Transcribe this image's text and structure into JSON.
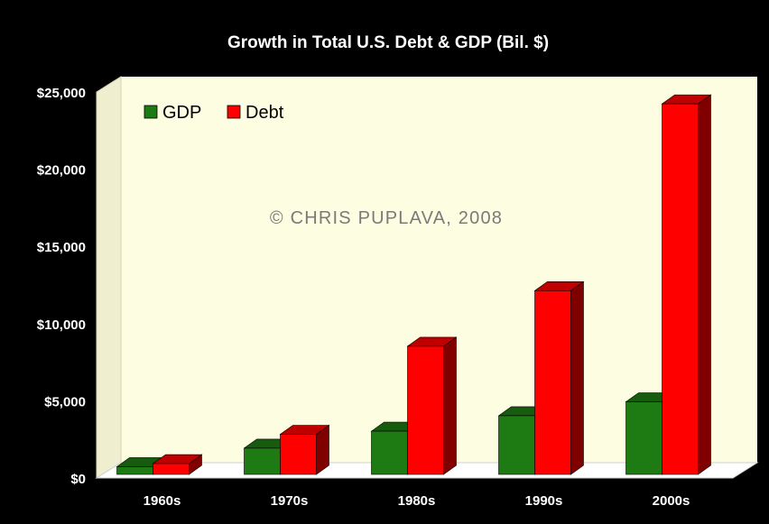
{
  "chart_data": {
    "type": "bar",
    "title": "Growth in Total U.S. Debt & GDP (Bil. $)",
    "categories": [
      "1960s",
      "1970s",
      "1980s",
      "1990s",
      "2000s"
    ],
    "series": [
      {
        "name": "GDP",
        "values": [
          500,
          1700,
          2800,
          3800,
          4700
        ],
        "color": "#1e7a12"
      },
      {
        "name": "Debt",
        "values": [
          700,
          2600,
          8300,
          11900,
          24000
        ],
        "color": "#ff0000"
      }
    ],
    "ylim": [
      0,
      25000
    ],
    "yticks": [
      0,
      5000,
      10000,
      15000,
      20000,
      25000
    ],
    "ytick_labels": [
      "$0",
      "$5,000",
      "$10,000",
      "$15,000",
      "$20,000",
      "$25,000"
    ],
    "legend_position": "top-left",
    "grid": false,
    "background_color": "#000000",
    "plot_background_color": "#fdfde2"
  },
  "watermark": "© CHRIS PUPLAVA, 2008"
}
